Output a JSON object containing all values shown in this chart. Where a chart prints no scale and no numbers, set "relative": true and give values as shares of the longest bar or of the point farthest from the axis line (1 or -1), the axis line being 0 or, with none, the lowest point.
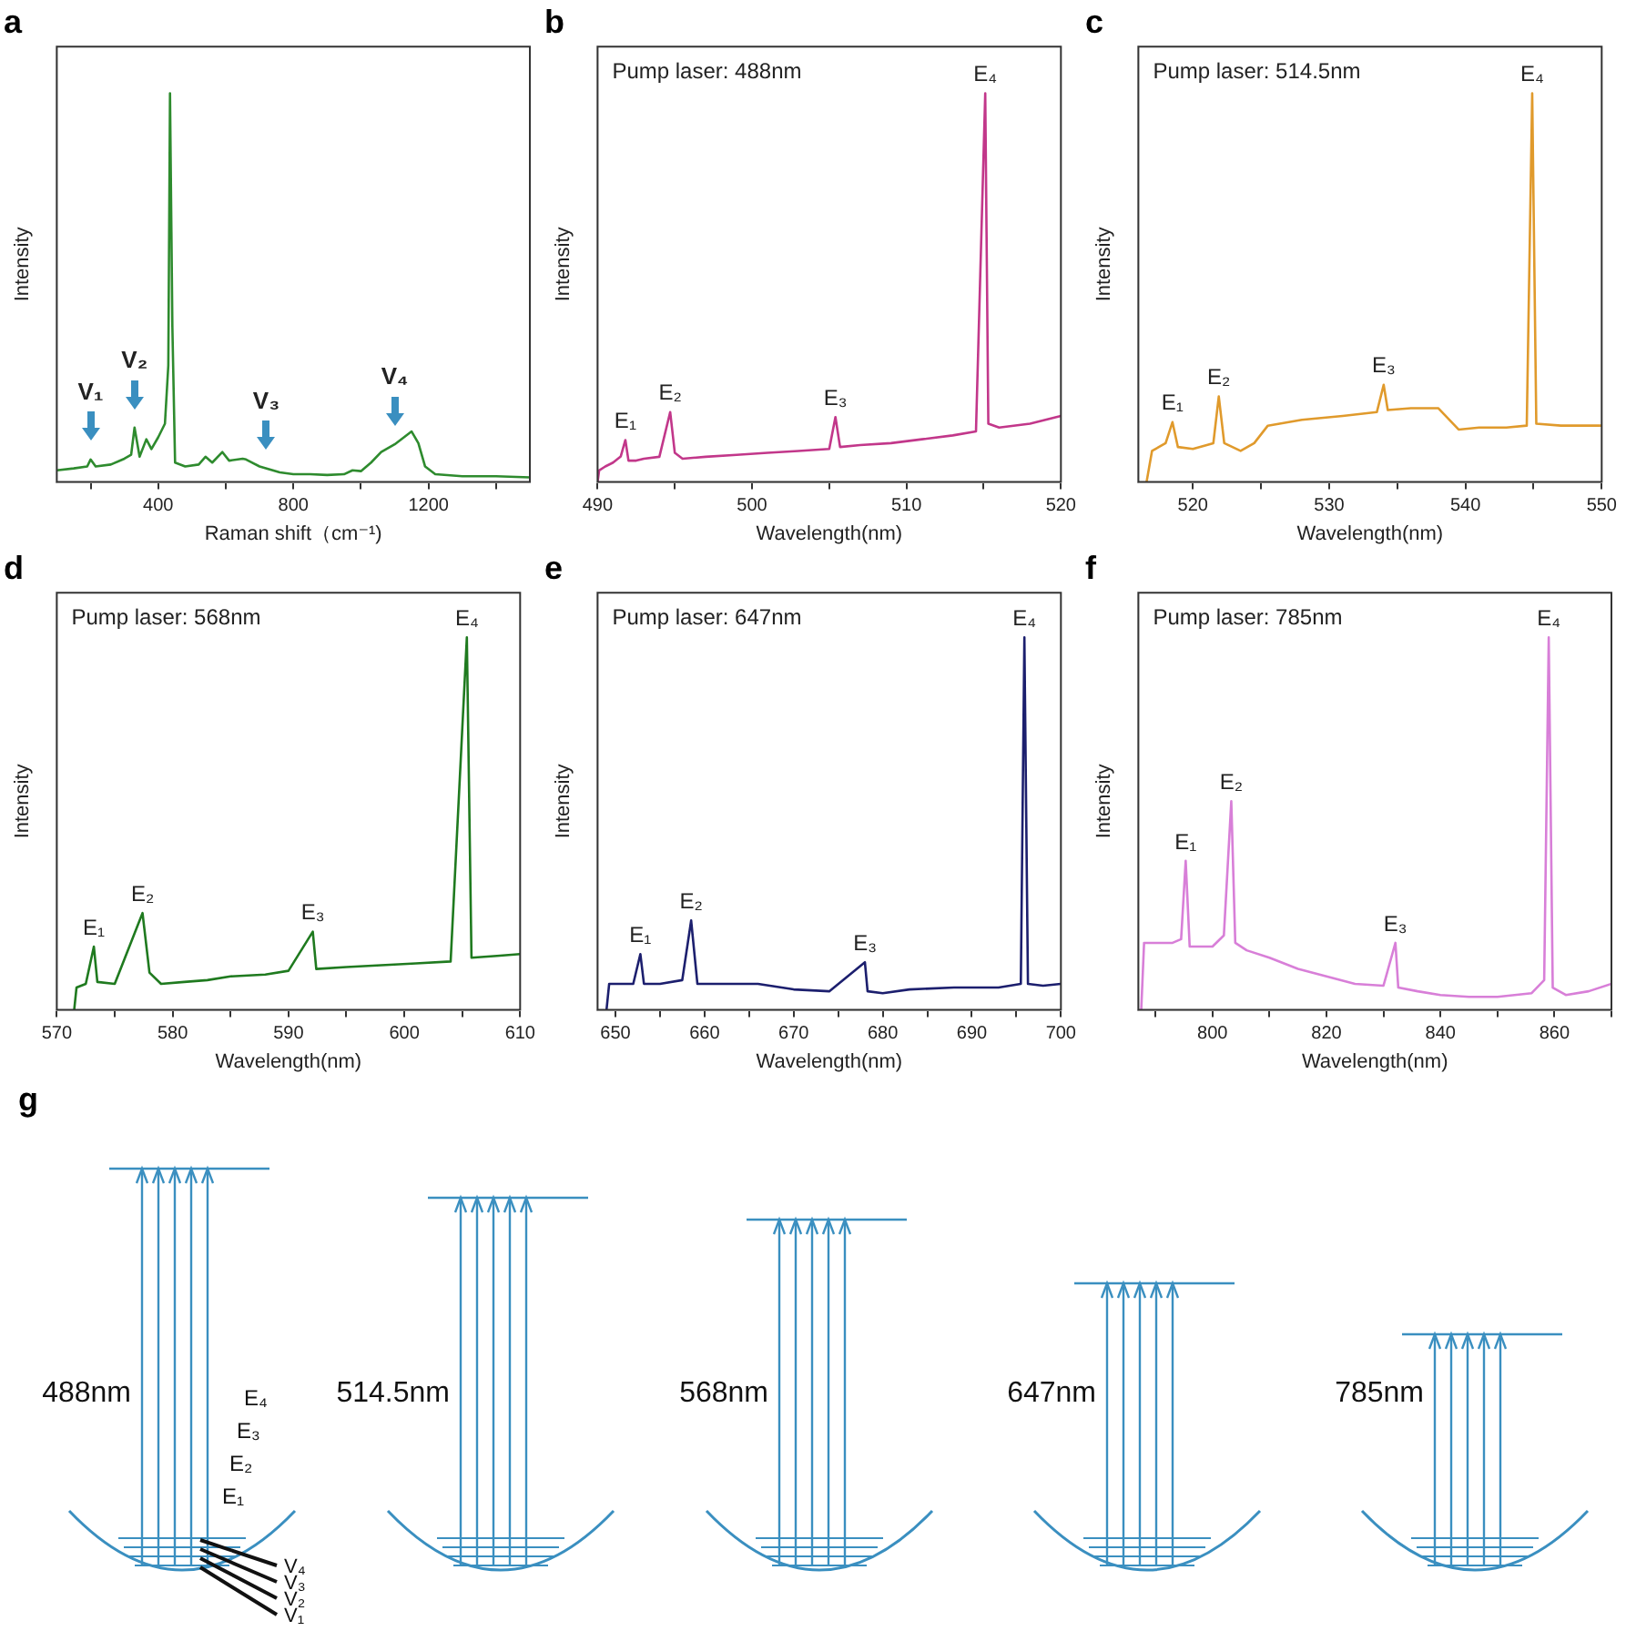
{
  "chart_data": [
    {
      "type": "line",
      "title": "a",
      "xlabel": "Raman shift（cm⁻¹)",
      "ylabel": "Intensity",
      "relative": true,
      "xlim": [
        100,
        1500
      ],
      "xticks": [
        {
          "value": 200,
          "label": null
        },
        400,
        {
          "value": 600,
          "label": null
        },
        800,
        {
          "value": 1000,
          "label": null
        },
        1200,
        {
          "value": 1400,
          "label": null
        }
      ],
      "series": [
        {
          "color": "#2e8b2e",
          "x": [
            100,
            150,
            190,
            200,
            215,
            260,
            300,
            320,
            330,
            345,
            365,
            380,
            400,
            420,
            430,
            435,
            442,
            450,
            480,
            520,
            540,
            560,
            590,
            610,
            650,
            660,
            700,
            760,
            800,
            850,
            900,
            950,
            975,
            1000,
            1030,
            1060,
            1100,
            1150,
            1170,
            1190,
            1220,
            1300,
            1400,
            1500
          ],
          "values": [
            0.03,
            0.035,
            0.04,
            0.058,
            0.04,
            0.045,
            0.06,
            0.07,
            0.14,
            0.065,
            0.11,
            0.085,
            0.115,
            0.15,
            0.3,
            1.0,
            0.4,
            0.05,
            0.04,
            0.045,
            0.065,
            0.05,
            0.077,
            0.055,
            0.06,
            0.058,
            0.04,
            0.025,
            0.02,
            0.02,
            0.018,
            0.02,
            0.03,
            0.028,
            0.05,
            0.077,
            0.097,
            0.13,
            0.1,
            0.04,
            0.02,
            0.015,
            0.015,
            0.012
          ]
        }
      ],
      "annotations": [
        {
          "text": "V₁",
          "x": 200,
          "y": 0.058
        },
        {
          "text": "V₂",
          "x": 330,
          "y": 0.14
        },
        {
          "text": "V₃",
          "x": 720,
          "y": 0.035
        },
        {
          "text": "V₄",
          "x": 1100,
          "y": 0.097
        }
      ]
    },
    {
      "type": "line",
      "title": "b",
      "xlabel": "Wavelength(nm)",
      "ylabel": "Intensity",
      "relative": true,
      "xlim": [
        490,
        520
      ],
      "xticks": [
        490,
        {
          "value": 495,
          "label": null
        },
        500,
        {
          "value": 505,
          "label": null
        },
        510,
        {
          "value": 515,
          "label": null
        },
        520
      ],
      "series": [
        {
          "color": "#c2378a",
          "x": [
            490,
            490.1,
            490.5,
            491,
            491.5,
            491.8,
            492,
            492.5,
            493,
            494,
            494.7,
            495,
            495.5,
            497,
            499,
            501,
            503,
            505,
            505.4,
            505.7,
            507,
            509,
            511,
            513,
            514.5,
            515.1,
            515.3,
            516,
            518,
            520
          ],
          "values": [
            0,
            0.03,
            0.04,
            0.05,
            0.066,
            0.108,
            0.055,
            0.055,
            0.06,
            0.065,
            0.18,
            0.075,
            0.06,
            0.065,
            0.07,
            0.075,
            0.08,
            0.085,
            0.167,
            0.09,
            0.095,
            0.1,
            0.11,
            0.12,
            0.13,
            1.0,
            0.15,
            0.14,
            0.15,
            0.17
          ]
        }
      ],
      "annotations": [
        "Pump laser: 488nm",
        {
          "text": "E₁",
          "x": 491.8,
          "y": 0.108
        },
        {
          "text": "E₂",
          "x": 494.7,
          "y": 0.18
        },
        {
          "text": "E₃",
          "x": 505.4,
          "y": 0.167
        },
        {
          "text": "E₄",
          "x": 515.1,
          "y": 1.0
        }
      ]
    },
    {
      "type": "line",
      "title": "c",
      "xlabel": "Wavelength(nm)",
      "ylabel": "Intensity",
      "relative": true,
      "xlim": [
        516,
        550
      ],
      "xticks": [
        520,
        {
          "value": 525,
          "label": null
        },
        530,
        {
          "value": 535,
          "label": null
        },
        540,
        {
          "value": 545,
          "label": null
        },
        550
      ],
      "series": [
        {
          "color": "#e09a2c",
          "x": [
            516.6,
            517,
            518,
            518.5,
            518.9,
            520,
            521.5,
            521.9,
            522.3,
            523.5,
            524.5,
            525.5,
            528,
            531,
            533.5,
            534,
            534.3,
            536,
            538,
            539.5,
            541,
            543,
            544.5,
            544.9,
            545.2,
            547,
            550
          ],
          "values": [
            0,
            0.08,
            0.1,
            0.154,
            0.09,
            0.085,
            0.1,
            0.22,
            0.1,
            0.08,
            0.1,
            0.145,
            0.16,
            0.17,
            0.18,
            0.25,
            0.185,
            0.19,
            0.19,
            0.135,
            0.14,
            0.14,
            0.145,
            1.0,
            0.15,
            0.145,
            0.145
          ]
        }
      ],
      "annotations": [
        "Pump laser: 514.5nm",
        {
          "text": "E₁",
          "x": 518.5,
          "y": 0.154
        },
        {
          "text": "E₂",
          "x": 521.9,
          "y": 0.22
        },
        {
          "text": "E₃",
          "x": 534,
          "y": 0.25
        },
        {
          "text": "E₄",
          "x": 544.9,
          "y": 1.0
        }
      ]
    },
    {
      "type": "line",
      "title": "d",
      "xlabel": "Wavelength(nm)",
      "ylabel": "Intensity",
      "relative": true,
      "xlim": [
        570,
        610
      ],
      "xticks": [
        570,
        {
          "value": 575,
          "label": null
        },
        580,
        {
          "value": 585,
          "label": null
        },
        590,
        {
          "value": 595,
          "label": null
        },
        600,
        {
          "value": 605,
          "label": null
        },
        610
      ],
      "series": [
        {
          "color": "#1f7a1f",
          "x": [
            571.5,
            571.7,
            572.5,
            573.2,
            573.5,
            575,
            577.4,
            578,
            579,
            581,
            583,
            585,
            588,
            590,
            592.1,
            592.4,
            595,
            598,
            601,
            604,
            605.4,
            605.8,
            608,
            610
          ],
          "values": [
            0,
            0.06,
            0.07,
            0.17,
            0.075,
            0.07,
            0.26,
            0.1,
            0.07,
            0.075,
            0.08,
            0.09,
            0.095,
            0.105,
            0.21,
            0.11,
            0.115,
            0.12,
            0.125,
            0.13,
            1.0,
            0.14,
            0.145,
            0.15
          ]
        }
      ],
      "annotations": [
        "Pump laser: 568nm",
        {
          "text": "E₁",
          "x": 573.2,
          "y": 0.17
        },
        {
          "text": "E₂",
          "x": 577.4,
          "y": 0.26
        },
        {
          "text": "E₃",
          "x": 592.1,
          "y": 0.21
        },
        {
          "text": "E₄",
          "x": 605.4,
          "y": 1.0
        }
      ]
    },
    {
      "type": "line",
      "title": "e",
      "xlabel": "Wavelength(nm)",
      "ylabel": "Intensity",
      "relative": true,
      "xlim": [
        648,
        700
      ],
      "xticks": [
        650,
        {
          "value": 655,
          "label": null
        },
        660,
        {
          "value": 665,
          "label": null
        },
        670,
        {
          "value": 675,
          "label": null
        },
        680,
        {
          "value": 685,
          "label": null
        },
        690,
        {
          "value": 695,
          "label": null
        },
        700
      ],
      "series": [
        {
          "color": "#1c1f6e",
          "x": [
            649,
            649.3,
            650,
            652,
            652.8,
            653.2,
            655,
            657.5,
            658.5,
            659.2,
            662,
            666,
            670,
            674,
            678,
            678.3,
            680,
            683,
            688,
            693,
            695.5,
            695.9,
            696.3,
            698,
            700
          ],
          "values": [
            0,
            0.07,
            0.07,
            0.07,
            0.15,
            0.07,
            0.07,
            0.08,
            0.24,
            0.07,
            0.07,
            0.07,
            0.055,
            0.05,
            0.128,
            0.05,
            0.045,
            0.055,
            0.06,
            0.06,
            0.07,
            1.0,
            0.07,
            0.065,
            0.07
          ]
        }
      ],
      "annotations": [
        "Pump laser: 647nm",
        {
          "text": "E₁",
          "x": 652.8,
          "y": 0.15
        },
        {
          "text": "E₂",
          "x": 658.5,
          "y": 0.24
        },
        {
          "text": "E₃",
          "x": 678,
          "y": 0.128
        },
        {
          "text": "E₄",
          "x": 695.9,
          "y": 1.0
        }
      ]
    },
    {
      "type": "line",
      "title": "f",
      "xlabel": "Wavelength(nm)",
      "ylabel": "Intensity",
      "relative": true,
      "xlim": [
        787,
        870
      ],
      "xticks": [
        {
          "value": 790,
          "label": null
        },
        800,
        {
          "value": 810,
          "label": null
        },
        820,
        {
          "value": 830,
          "label": null
        },
        840,
        {
          "value": 850,
          "label": null
        },
        860,
        {
          "value": 870,
          "label": null
        }
      ],
      "series": [
        {
          "color": "#d87fd8",
          "x": [
            787.5,
            788,
            790,
            793,
            794.5,
            795.3,
            796,
            798,
            800,
            802,
            803.3,
            804,
            806,
            810,
            815,
            820,
            825,
            830,
            832.1,
            832.6,
            836,
            840,
            845,
            850,
            856,
            858.2,
            859,
            859.7,
            862,
            866,
            870
          ],
          "values": [
            0,
            0.18,
            0.18,
            0.18,
            0.19,
            0.4,
            0.17,
            0.17,
            0.17,
            0.2,
            0.56,
            0.18,
            0.16,
            0.14,
            0.11,
            0.09,
            0.07,
            0.065,
            0.18,
            0.06,
            0.05,
            0.04,
            0.035,
            0.035,
            0.045,
            0.08,
            1.0,
            0.06,
            0.04,
            0.05,
            0.07
          ]
        }
      ],
      "annotations": [
        "Pump laser: 785nm",
        {
          "text": "E₁",
          "x": 795.3,
          "y": 0.4
        },
        {
          "text": "E₂",
          "x": 803.3,
          "y": 0.56
        },
        {
          "text": "E₃",
          "x": 832.1,
          "y": 0.18
        },
        {
          "text": "E₄",
          "x": 859,
          "y": 1.0
        }
      ]
    },
    {
      "type": "other",
      "title": "g",
      "categories": [
        "488nm",
        "514.5nm",
        "568nm",
        "647nm",
        "785nm"
      ],
      "annotations": [
        "E₁",
        "E₂",
        "E₃",
        "E₄",
        "V₄",
        "V₃",
        "V₂",
        "V₁"
      ]
    }
  ]
}
